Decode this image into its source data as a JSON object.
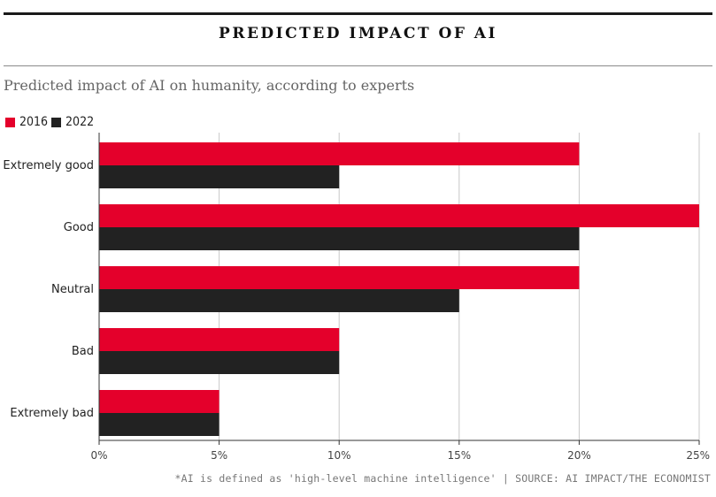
{
  "header": {
    "title": "PREDICTED IMPACT OF AI",
    "subtitle": "Predicted impact of AI on humanity, according to experts"
  },
  "footnote": "*AI is defined as 'high-level machine intelligence' | SOURCE: AI IMPACT/THE ECONOMIST",
  "colors": {
    "s2016": "#e4002b",
    "s2022": "#222222",
    "grid": "#c8c8c8",
    "axis": "#333333"
  },
  "chart_data": {
    "type": "bar",
    "orientation": "horizontal",
    "categories": [
      "Extremely good",
      "Good",
      "Neutral",
      "Bad",
      "Extremely bad"
    ],
    "series": [
      {
        "name": "2016",
        "values": [
          20,
          25,
          20,
          10,
          5
        ]
      },
      {
        "name": "2022",
        "values": [
          10,
          20,
          15,
          10,
          5
        ]
      }
    ],
    "xlim": [
      0,
      25
    ],
    "xticks": [
      0,
      5,
      10,
      15,
      20,
      25
    ],
    "xtick_labels": [
      "0%",
      "5%",
      "10%",
      "15%",
      "20%",
      "25%"
    ],
    "grid": true,
    "legend_position": "top-left"
  }
}
